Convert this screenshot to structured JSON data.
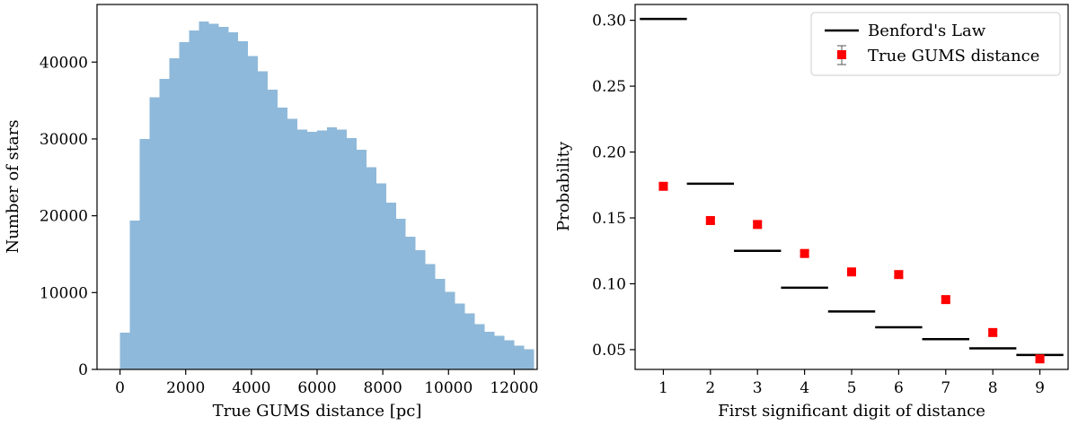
{
  "chart_data": [
    {
      "type": "bar",
      "subtype": "histogram",
      "xlabel": "True GUMS distance [pc]",
      "ylabel": "Number of stars",
      "xlim": [
        -700,
        12700
      ],
      "ylim": [
        0,
        47500
      ],
      "xticks": [
        0,
        2000,
        4000,
        6000,
        8000,
        10000,
        12000
      ],
      "yticks": [
        0,
        10000,
        20000,
        30000,
        40000
      ],
      "bin_width": 300,
      "bin_start": 0,
      "color": "#8fb9da",
      "values": [
        4800,
        19400,
        30000,
        35400,
        37800,
        40500,
        42600,
        44100,
        45300,
        45000,
        44600,
        43900,
        42700,
        40800,
        38800,
        36400,
        34100,
        32600,
        31200,
        30900,
        31100,
        31500,
        31200,
        30100,
        28600,
        26300,
        24200,
        21700,
        19600,
        17300,
        15500,
        13700,
        11800,
        10100,
        8600,
        7300,
        5900,
        4900,
        4400,
        3800,
        3100,
        2600
      ]
    },
    {
      "type": "scatter",
      "xlabel": "First significant digit of distance",
      "ylabel": "Probability",
      "xlim": [
        0.4,
        9.6
      ],
      "ylim": [
        0.035,
        0.312
      ],
      "xticks": [
        1,
        2,
        3,
        4,
        5,
        6,
        7,
        8,
        9
      ],
      "yticks": [
        0.05,
        0.1,
        0.15,
        0.2,
        0.25,
        0.3
      ],
      "ytick_labels": [
        "0.05",
        "0.10",
        "0.15",
        "0.20",
        "0.25",
        "0.30"
      ],
      "legend_position": "top-right",
      "series": [
        {
          "name": "Benford's Law",
          "kind": "step-segments",
          "color": "#000000",
          "x": [
            1,
            2,
            3,
            4,
            5,
            6,
            7,
            8,
            9
          ],
          "values": [
            0.301,
            0.176,
            0.125,
            0.097,
            0.079,
            0.067,
            0.058,
            0.051,
            0.046
          ]
        },
        {
          "name": "True GUMS distance",
          "kind": "points-errorbars",
          "color": "#ff0000",
          "x": [
            1,
            2,
            3,
            4,
            5,
            6,
            7,
            8,
            9
          ],
          "values": [
            0.174,
            0.148,
            0.145,
            0.123,
            0.109,
            0.107,
            0.088,
            0.063,
            0.043
          ],
          "errors": [
            0.002,
            0.002,
            0.002,
            0.002,
            0.002,
            0.002,
            0.002,
            0.002,
            0.002
          ]
        }
      ]
    }
  ]
}
